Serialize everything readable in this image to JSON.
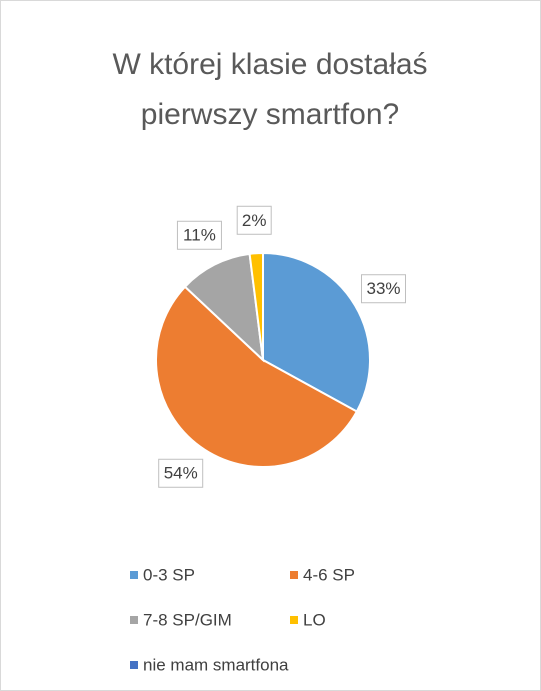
{
  "chart_data": {
    "type": "pie",
    "title": "W której klasie dostałaś pierwszy smartfon?",
    "categories": [
      "0-3 SP",
      "4-6 SP",
      "7-8 SP/GIM",
      "LO",
      "nie mam smartfona"
    ],
    "values": [
      33,
      54,
      11,
      2,
      0
    ],
    "value_labels": [
      "33%",
      "54%",
      "11%",
      "2%",
      null
    ],
    "colors": [
      "#5b9bd5",
      "#ed7d31",
      "#a5a5a5",
      "#ffc000",
      "#4472c4"
    ],
    "legend": "bottom"
  }
}
